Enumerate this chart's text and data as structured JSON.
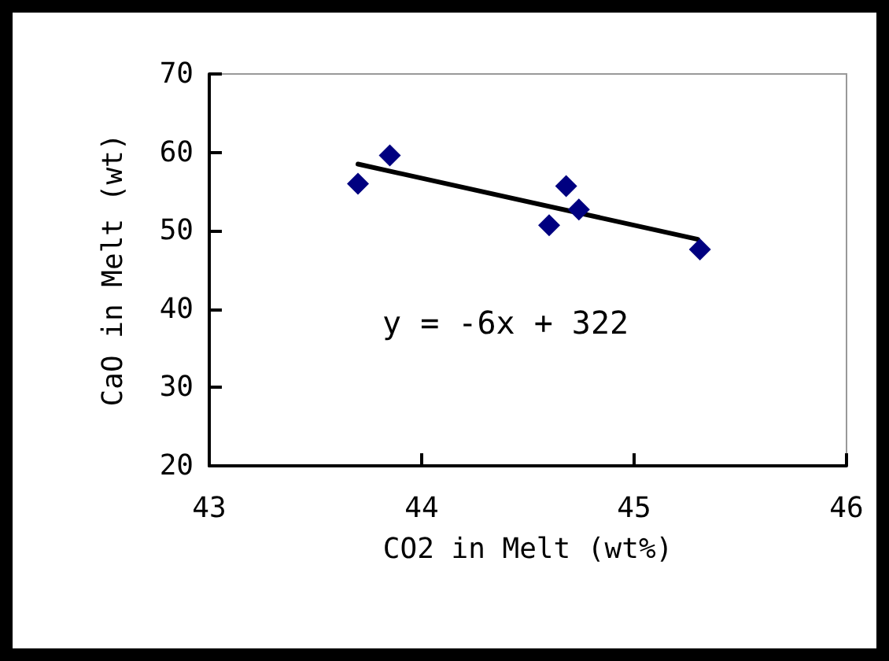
{
  "chart_data": {
    "type": "scatter",
    "xlabel": "CO2 in Melt (wt%)",
    "ylabel": "CaO in Melt (wt)",
    "xlim": [
      43,
      46
    ],
    "xticks": [
      43,
      44,
      45,
      46
    ],
    "ylim": [
      20,
      70
    ],
    "yticks": [
      20,
      30,
      40,
      50,
      60,
      70
    ],
    "marker": "diamond",
    "annotations": [
      "y = -6x + 322"
    ],
    "series": [
      {
        "color": "#000080",
        "x": [
          43.7,
          43.85,
          44.6,
          44.68,
          44.74,
          45.31
        ],
        "values": [
          56.0,
          59.6,
          50.7,
          55.7,
          52.7,
          47.6
        ]
      },
      {
        "type": "line",
        "color": "#000000",
        "x": [
          43.7,
          45.3
        ],
        "values": [
          58.5,
          48.9
        ],
        "marker": "none",
        "line_style": "solid"
      }
    ]
  }
}
